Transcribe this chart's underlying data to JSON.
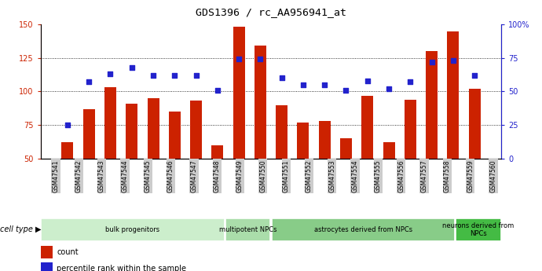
{
  "title": "GDS1396 / rc_AA956941_at",
  "samples": [
    "GSM47541",
    "GSM47542",
    "GSM47543",
    "GSM47544",
    "GSM47545",
    "GSM47546",
    "GSM47547",
    "GSM47548",
    "GSM47549",
    "GSM47550",
    "GSM47551",
    "GSM47552",
    "GSM47553",
    "GSM47554",
    "GSM47555",
    "GSM47556",
    "GSM47557",
    "GSM47558",
    "GSM47559",
    "GSM47560"
  ],
  "counts": [
    62,
    87,
    103,
    91,
    95,
    85,
    93,
    60,
    148,
    134,
    90,
    77,
    78,
    65,
    97,
    62,
    94,
    130,
    145,
    102
  ],
  "percentile_ranks_pct": [
    25,
    57,
    63,
    68,
    62,
    62,
    62,
    51,
    74,
    74,
    60,
    55,
    55,
    51,
    58,
    52,
    57,
    72,
    73,
    62
  ],
  "cell_type_groups": [
    {
      "label": "bulk progenitors",
      "start": 0,
      "end": 7,
      "color": "#cceecc"
    },
    {
      "label": "multipotent NPCs",
      "start": 8,
      "end": 9,
      "color": "#aaddaa"
    },
    {
      "label": "astrocytes derived from NPCs",
      "start": 10,
      "end": 17,
      "color": "#88cc88"
    },
    {
      "label": "neurons derived from\nNPCs",
      "start": 18,
      "end": 19,
      "color": "#44bb44"
    }
  ],
  "bar_color": "#cc2200",
  "dot_color": "#2222cc",
  "ylim_left": [
    50,
    150
  ],
  "ylim_right": [
    0,
    100
  ],
  "yticks_left": [
    50,
    75,
    100,
    125,
    150
  ],
  "yticks_right": [
    0,
    25,
    50,
    75,
    100
  ],
  "ylabel_left_color": "#cc2200",
  "ylabel_right_color": "#2222cc",
  "tick_bg_color": "#cccccc",
  "legend_items": [
    {
      "label": "count",
      "color": "#cc2200"
    },
    {
      "label": "percentile rank within the sample",
      "color": "#2222cc"
    }
  ],
  "cell_type_label": "cell type",
  "bar_width": 0.55
}
